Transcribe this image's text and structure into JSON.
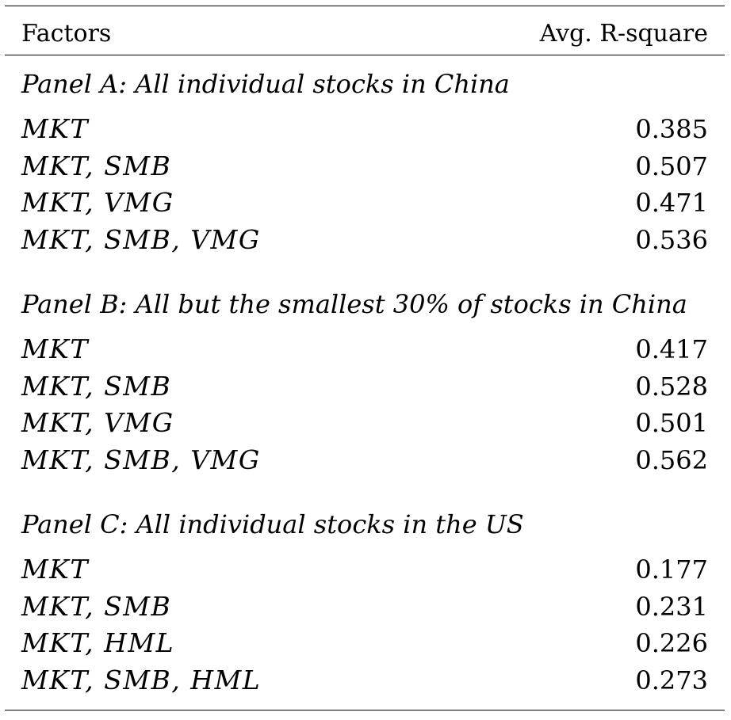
{
  "header": {
    "left": "Factors",
    "right": "Avg. R-square"
  },
  "panels": [
    {
      "title": "Panel A: All individual stocks in China",
      "rows": [
        {
          "factors": "MKT",
          "value": "0.385"
        },
        {
          "factors": "MKT, SMB",
          "value": "0.507"
        },
        {
          "factors": "MKT, VMG",
          "value": "0.471"
        },
        {
          "factors": "MKT, SMB, VMG",
          "value": "0.536"
        }
      ]
    },
    {
      "title": "Panel B: All but the smallest 30% of stocks in China",
      "rows": [
        {
          "factors": "MKT",
          "value": "0.417"
        },
        {
          "factors": "MKT, SMB",
          "value": "0.528"
        },
        {
          "factors": "MKT, VMG",
          "value": "0.501"
        },
        {
          "factors": "MKT, SMB, VMG",
          "value": "0.562"
        }
      ]
    },
    {
      "title": "Panel C: All individual stocks in the US",
      "rows": [
        {
          "factors": "MKT",
          "value": "0.177"
        },
        {
          "factors": "MKT, SMB",
          "value": "0.231"
        },
        {
          "factors": "MKT, HML",
          "value": "0.226"
        },
        {
          "factors": "MKT, SMB, HML",
          "value": "0.273"
        }
      ]
    }
  ]
}
